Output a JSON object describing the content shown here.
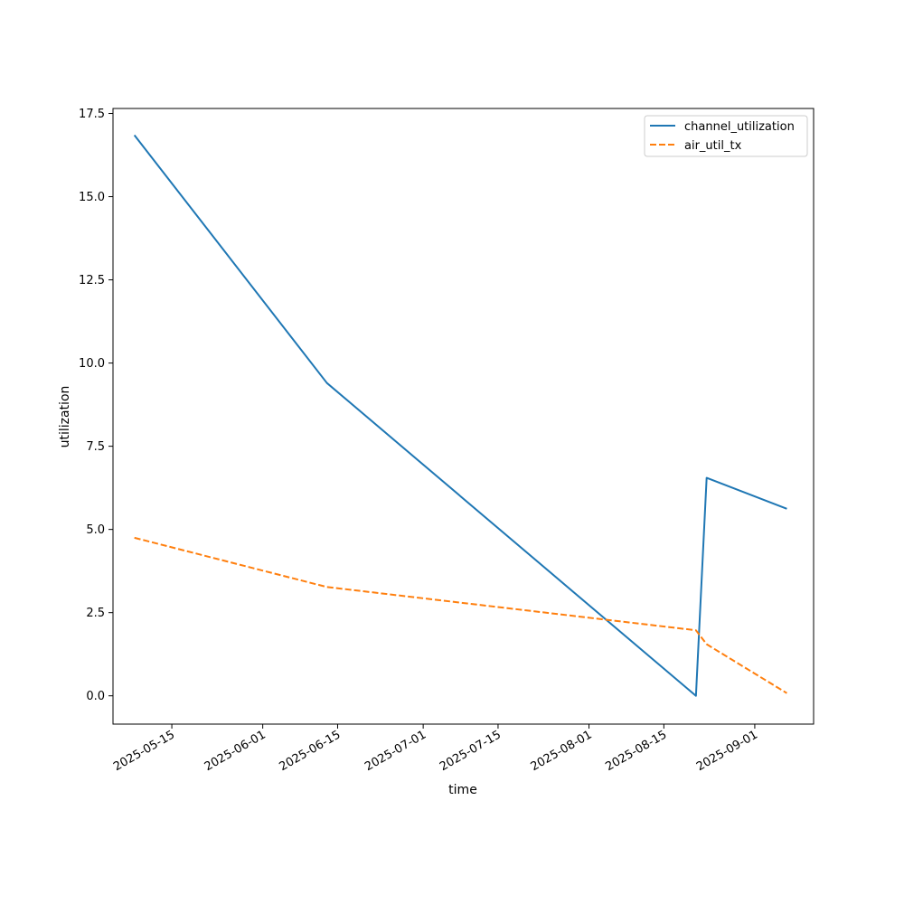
{
  "chart_data": {
    "type": "line",
    "xlabel": "time",
    "ylabel": "utilization",
    "x_type": "date",
    "xlim": [
      "2025-05-04",
      "2025-09-12"
    ],
    "ylim": [
      -0.85,
      17.65
    ],
    "x_ticks": [
      "2025-05-15",
      "2025-06-01",
      "2025-06-15",
      "2025-07-01",
      "2025-07-15",
      "2025-08-01",
      "2025-08-15",
      "2025-09-01"
    ],
    "y_ticks": [
      0.0,
      2.5,
      5.0,
      7.5,
      10.0,
      12.5,
      15.0,
      17.5
    ],
    "y_tick_labels": [
      "0.0",
      "2.5",
      "5.0",
      "7.5",
      "10.0",
      "12.5",
      "15.0",
      "17.5"
    ],
    "grid": false,
    "legend_position": "top-right",
    "series": [
      {
        "name": "channel_utilization",
        "color": "#1f77b4",
        "style": "solid",
        "x": [
          "2025-05-08",
          "2025-06-13",
          "2025-08-21",
          "2025-08-23",
          "2025-09-07"
        ],
        "y": [
          16.85,
          9.4,
          0.0,
          6.55,
          5.62
        ]
      },
      {
        "name": "air_util_tx",
        "color": "#ff7f0e",
        "style": "dashed",
        "x": [
          "2025-05-08",
          "2025-06-13",
          "2025-08-21",
          "2025-08-23",
          "2025-09-07"
        ],
        "y": [
          4.75,
          3.27,
          1.97,
          1.55,
          0.08
        ]
      }
    ]
  }
}
